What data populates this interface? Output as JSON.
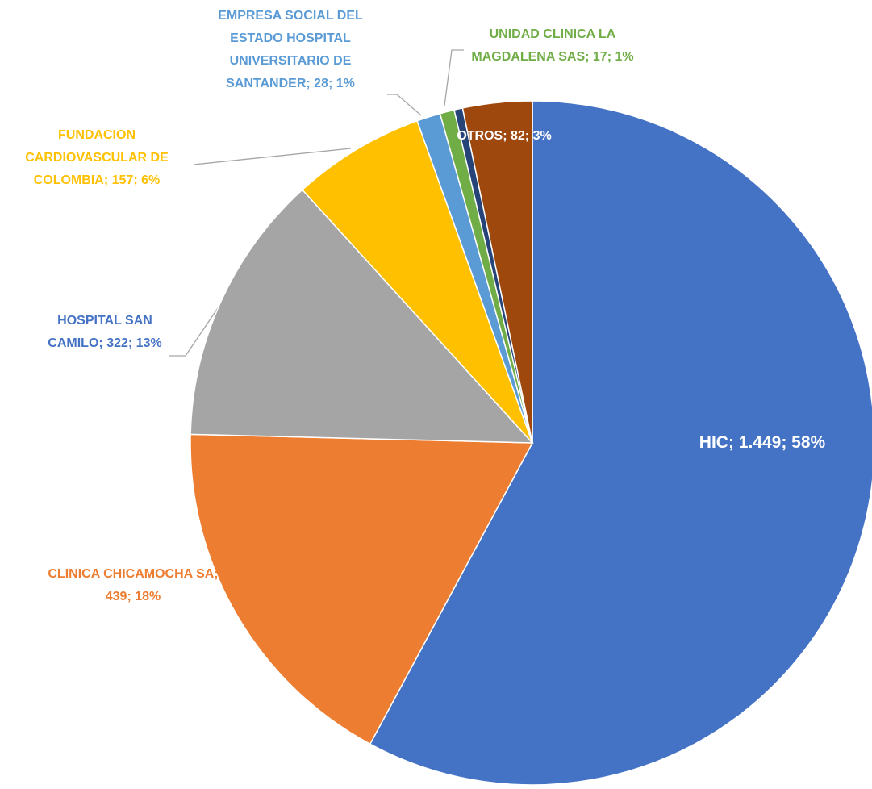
{
  "chart_data": {
    "type": "pie",
    "categories": [
      "HIC",
      "CLINICA CHICAMOCHA SA",
      "HOSPITAL SAN CAMILO",
      "FUNDACION CARDIOVASCULAR DE COLOMBIA",
      "EMPRESA SOCIAL DEL ESTADO HOSPITAL UNIVERSITARIO DE SANTANDER",
      "UNIDAD CLINICA LA MAGDALENA SAS",
      null,
      "OTROS"
    ],
    "values": [
      1449,
      439,
      322,
      157,
      28,
      17,
      10,
      82
    ],
    "value_labels": [
      "1.449",
      "439",
      "322",
      "157",
      "28",
      "17",
      null,
      "82"
    ],
    "percents": [
      58,
      18,
      13,
      6,
      1,
      1,
      null,
      3
    ],
    "percent_labels": [
      "58%",
      "18%",
      "13%",
      "6%",
      "1%",
      "1%",
      null,
      "3%"
    ],
    "label_separator": "; ",
    "colors": [
      "#4472c4",
      "#ed7d31",
      "#a5a5a5",
      "#ffc000",
      "#5b9bd5",
      "#70ad47",
      "#264478",
      "#9e480e"
    ],
    "label_colors": [
      "#ffffff",
      "#ed7d31",
      "#4472c4",
      "#ffc000",
      "#5b9bd5",
      "#70ad47",
      null,
      "#ffffff"
    ]
  }
}
